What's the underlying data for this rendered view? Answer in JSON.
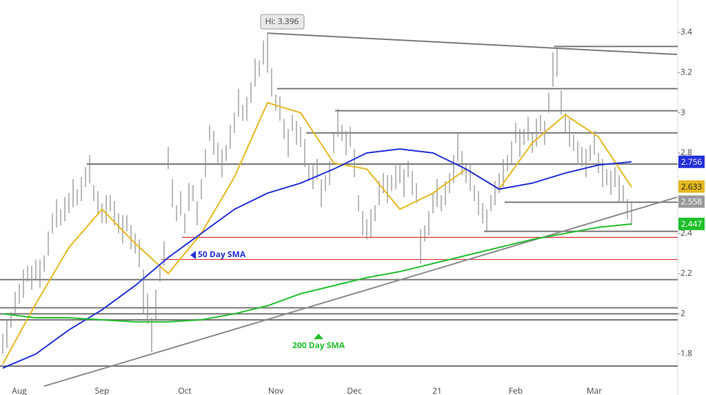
{
  "chart_data": {
    "type": "ohlc",
    "high_label": "Hi: 3.396",
    "categories": [
      null,
      null,
      null,
      null,
      "Aug",
      null,
      null,
      null,
      null,
      null,
      null,
      null,
      null,
      null,
      null,
      null,
      null,
      null,
      null,
      null,
      null,
      null,
      null,
      null,
      "Sep",
      null,
      null,
      null,
      null,
      null,
      null,
      null,
      null,
      null,
      null,
      null,
      null,
      null,
      null,
      null,
      null,
      null,
      null,
      null,
      "Oct",
      null,
      null,
      null,
      null,
      null,
      null,
      null,
      null,
      null,
      null,
      null,
      null,
      null,
      null,
      null,
      null,
      null,
      null,
      null,
      null,
      null,
      "Nov",
      null,
      null,
      null,
      null,
      null,
      null,
      null,
      null,
      null,
      null,
      null,
      null,
      null,
      null,
      null,
      null,
      null,
      null,
      "Dec",
      null,
      null,
      null,
      null,
      null,
      null,
      null,
      null,
      null,
      null,
      null,
      null,
      null,
      null,
      null,
      null,
      null,
      null,
      null,
      "21",
      null,
      null,
      null,
      null,
      null,
      null,
      null,
      null,
      null,
      null,
      null,
      null,
      null,
      null,
      null,
      null,
      null,
      null,
      "Feb",
      null,
      null,
      null,
      null,
      null,
      null,
      null,
      null,
      null,
      null,
      null,
      null,
      null,
      null,
      null,
      null,
      null,
      null,
      "Mar",
      null,
      null,
      null,
      null,
      null,
      null,
      null,
      null,
      null
    ],
    "high": [
      1.9,
      1.97,
      2.01,
      2.11,
      2.15,
      2.22,
      2.24,
      2.24,
      2.27,
      2.27,
      2.29,
      2.41,
      2.5,
      2.57,
      2.52,
      2.58,
      2.6,
      2.67,
      2.62,
      2.68,
      2.73,
      2.79,
      2.64,
      2.61,
      2.55,
      2.59,
      2.59,
      2.56,
      2.5,
      2.49,
      2.49,
      2.44,
      2.4,
      2.37,
      2.22,
      2.1,
      1.98,
      2.12,
      2.24,
      2.36,
      2.83,
      2.67,
      2.54,
      2.61,
      2.5,
      2.65,
      2.64,
      2.56,
      2.67,
      2.82,
      2.94,
      2.91,
      2.85,
      2.82,
      2.84,
      2.94,
      3.0,
      3.12,
      3.04,
      3.08,
      3.15,
      3.27,
      3.26,
      3.36,
      3.396,
      3.22,
      3.09,
      3.08,
      2.97,
      2.92,
      2.99,
      2.96,
      2.93,
      2.87,
      2.74,
      2.74,
      2.77,
      2.67,
      2.69,
      2.76,
      2.9,
      3.02,
      2.94,
      2.91,
      2.93,
      2.82,
      2.59,
      2.51,
      2.47,
      2.52,
      2.54,
      2.66,
      2.7,
      2.69,
      2.69,
      2.74,
      2.75,
      2.72,
      2.76,
      2.71,
      2.65,
      2.42,
      2.44,
      2.51,
      2.6,
      2.67,
      2.59,
      2.66,
      2.7,
      2.79,
      2.9,
      2.81,
      2.75,
      2.75,
      2.64,
      2.61,
      2.55,
      2.52,
      2.59,
      2.66,
      2.7,
      2.77,
      2.79,
      2.86,
      2.95,
      2.92,
      2.92,
      2.98,
      2.9,
      2.97,
      2.99,
      2.96,
      3.1,
      3.3,
      3.32,
      3.11,
      3.0,
      2.97,
      2.89,
      2.86,
      2.83,
      2.82,
      2.84,
      2.91,
      2.8,
      2.77,
      2.72,
      2.71,
      2.73,
      2.69,
      2.64,
      2.57,
      2.56
    ],
    "low": [
      1.8,
      1.83,
      1.93,
      1.99,
      2.05,
      2.08,
      2.16,
      2.12,
      2.17,
      2.13,
      2.21,
      2.29,
      2.4,
      2.43,
      2.44,
      2.46,
      2.5,
      2.53,
      2.54,
      2.56,
      2.63,
      2.65,
      2.56,
      2.49,
      2.45,
      2.45,
      2.51,
      2.44,
      2.4,
      2.35,
      2.41,
      2.32,
      2.3,
      2.23,
      2.0,
      1.95,
      1.81,
      1.97,
      2.16,
      2.24,
      2.72,
      2.53,
      2.46,
      2.49,
      2.4,
      2.51,
      2.56,
      2.44,
      2.57,
      2.68,
      2.86,
      2.79,
      2.75,
      2.68,
      2.76,
      2.82,
      2.9,
      2.98,
      2.96,
      2.96,
      3.05,
      3.13,
      3.18,
      3.24,
      3.2,
      3.08,
      3.01,
      2.96,
      2.87,
      2.78,
      2.91,
      2.84,
      2.83,
      2.73,
      2.66,
      2.62,
      2.67,
      2.53,
      2.61,
      2.64,
      2.8,
      2.88,
      2.86,
      2.79,
      2.83,
      2.68,
      2.51,
      2.39,
      2.37,
      2.38,
      2.46,
      2.54,
      2.6,
      2.55,
      2.61,
      2.62,
      2.65,
      2.58,
      2.68,
      2.59,
      2.55,
      2.25,
      2.36,
      2.39,
      2.5,
      2.53,
      2.51,
      2.54,
      2.6,
      2.65,
      2.76,
      2.69,
      2.65,
      2.61,
      2.56,
      2.49,
      2.45,
      2.41,
      2.51,
      2.54,
      2.6,
      2.63,
      2.71,
      2.74,
      2.85,
      2.78,
      2.84,
      2.86,
      2.8,
      2.83,
      2.91,
      2.84,
      3.0,
      3.13,
      3.18,
      2.99,
      2.9,
      2.83,
      2.81,
      2.74,
      2.73,
      2.68,
      2.76,
      2.79,
      2.7,
      2.63,
      2.64,
      2.59,
      2.63,
      2.55,
      2.56,
      2.47,
      2.44
    ],
    "bar_color": "#8a8a8a",
    "overlays": [
      {
        "color": "#e6b820",
        "x": [
          0,
          8,
          16,
          24,
          32,
          40,
          48,
          56,
          64,
          72,
          80,
          88,
          96,
          104,
          112,
          120,
          128,
          136,
          144,
          152
        ],
        "values": [
          1.75,
          2.05,
          2.33,
          2.52,
          2.35,
          2.2,
          2.4,
          2.68,
          3.05,
          3.0,
          2.75,
          2.72,
          2.52,
          2.6,
          2.72,
          2.62,
          2.85,
          2.99,
          2.88,
          2.63
        ]
      },
      {
        "name": "50 Day SMA",
        "color": "#2230d8",
        "x": [
          0,
          8,
          16,
          24,
          32,
          40,
          48,
          56,
          64,
          72,
          80,
          88,
          96,
          104,
          112,
          120,
          128,
          136,
          144,
          152
        ],
        "values": [
          1.73,
          1.8,
          1.92,
          2.02,
          2.14,
          2.28,
          2.4,
          2.52,
          2.6,
          2.65,
          2.72,
          2.8,
          2.82,
          2.8,
          2.72,
          2.62,
          2.65,
          2.7,
          2.74,
          2.756
        ]
      },
      {
        "name": "200 Day SMA",
        "color": "#1fbf2a",
        "x": [
          0,
          8,
          16,
          24,
          32,
          40,
          48,
          56,
          64,
          72,
          80,
          88,
          96,
          104,
          112,
          120,
          128,
          136,
          144,
          152
        ],
        "values": [
          2.0,
          1.98,
          1.98,
          1.97,
          1.96,
          1.96,
          1.97,
          2.0,
          2.04,
          2.1,
          2.14,
          2.18,
          2.21,
          2.25,
          2.29,
          2.33,
          2.37,
          2.4,
          2.43,
          2.447
        ]
      }
    ],
    "levels": [
      {
        "from": 134,
        "value": 3.33,
        "color": "#777777"
      },
      {
        "from": 67,
        "value": 3.12,
        "color": "#777777"
      },
      {
        "from": 81,
        "value": 3.01,
        "color": "#777777"
      },
      {
        "from": 74,
        "value": 2.9,
        "color": "#777777"
      },
      {
        "from": 21,
        "value": 2.745,
        "color": "#777777"
      },
      {
        "from": 122,
        "value": 2.555,
        "color": "#777777"
      },
      {
        "from": 117,
        "value": 2.41,
        "color": "#777777"
      },
      {
        "from": 44,
        "value": 2.38,
        "color": "#e03030"
      },
      {
        "from": 39,
        "value": 2.27,
        "color": "#e03030"
      },
      {
        "from": 0,
        "value": 2.17,
        "color": "#777777"
      },
      {
        "from": 0,
        "value": 2.03,
        "color": "#777777"
      },
      {
        "from": 0,
        "value": 2.0,
        "color": "#777777"
      },
      {
        "from": 0,
        "value": 1.97,
        "color": "#777777"
      },
      {
        "from": 0,
        "value": 1.74,
        "color": "#777777"
      }
    ],
    "trendlines": [
      {
        "x": [
          64,
          163
        ],
        "values": [
          3.396,
          3.29
        ],
        "color": "#7a7a7a"
      },
      {
        "x": [
          10,
          163
        ],
        "values": [
          1.64,
          2.58
        ],
        "color": "#8a8a8a"
      }
    ],
    "price_labels": [
      {
        "value": 2.756,
        "color": "#2230d8",
        "text_color": "#ffffff"
      },
      {
        "value": 2.633,
        "color": "#e6b820",
        "text_color": "#222222"
      },
      {
        "value": 2.558,
        "color": "#9a9a9a",
        "text_color": "#ffffff"
      },
      {
        "value": 2.447,
        "color": "#1fbf2a",
        "text_color": "#ffffff"
      }
    ],
    "ylim": [
      1.596,
      3.561
    ],
    "yticks": [
      1.8,
      2,
      2.2,
      2.4,
      2.8,
      3,
      3.2,
      3.4
    ]
  }
}
